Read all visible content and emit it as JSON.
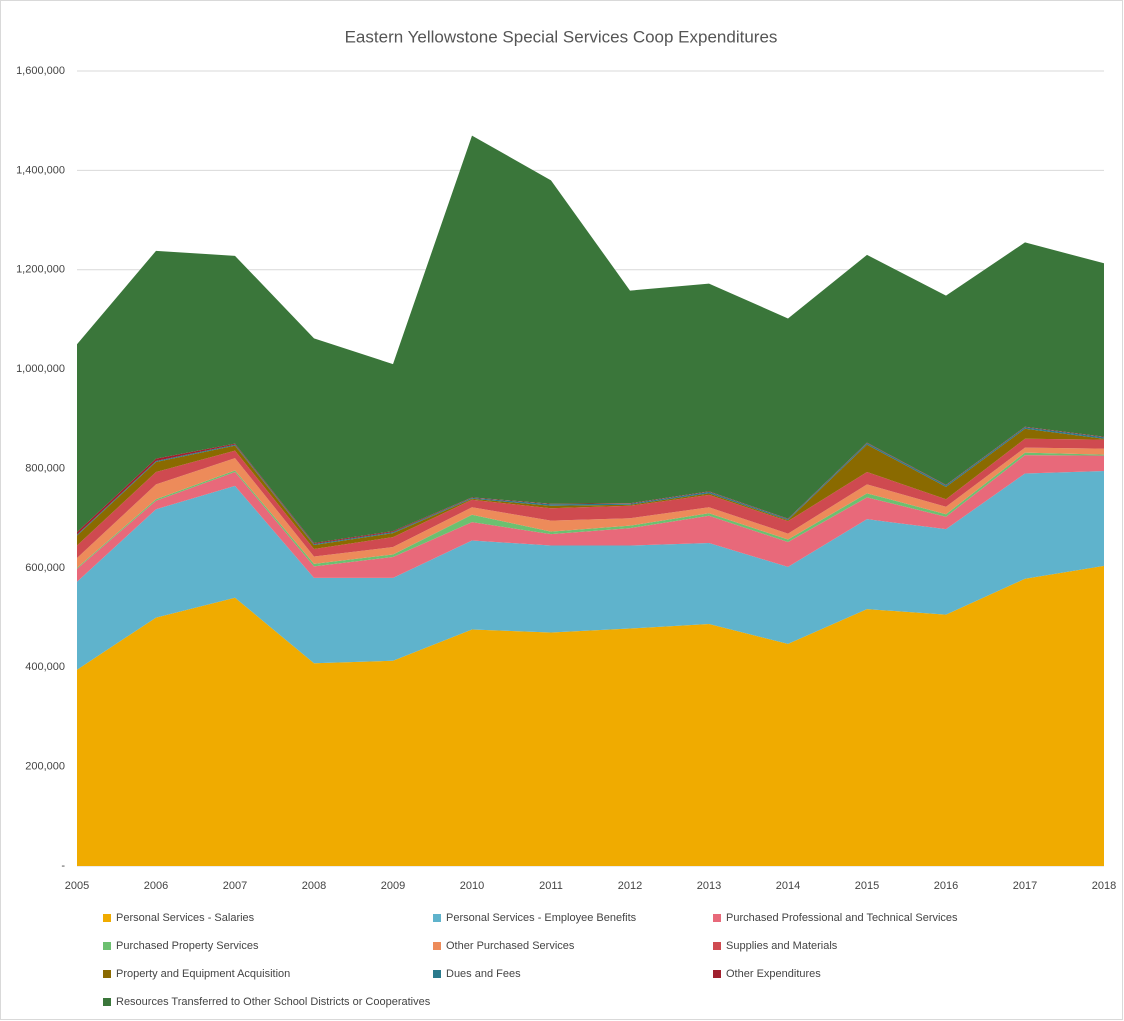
{
  "chart_data": {
    "type": "stacked_area",
    "title": "Eastern Yellowstone Special Services Coop Expenditures",
    "categories": [
      "2005",
      "2006",
      "2007",
      "2008",
      "2009",
      "2010",
      "2011",
      "2012",
      "2013",
      "2014",
      "2015",
      "2016",
      "2017",
      "2018"
    ],
    "ylim": [
      0,
      1600000
    ],
    "yticks": [
      {
        "value": 0,
        "label": "-"
      },
      {
        "value": 200000,
        "label": "200,000"
      },
      {
        "value": 400000,
        "label": "400,000"
      },
      {
        "value": 600000,
        "label": "600,000"
      },
      {
        "value": 800000,
        "label": "800,000"
      },
      {
        "value": 1000000,
        "label": "1,000,000"
      },
      {
        "value": 1200000,
        "label": "1,200,000"
      },
      {
        "value": 1400000,
        "label": "1,400,000"
      },
      {
        "value": 1600000,
        "label": "1,600,000"
      }
    ],
    "grid": true,
    "legend": "bottom",
    "series": [
      {
        "name": "Personal Services - Salaries",
        "color": "#f0ab00",
        "values": [
          395000,
          500000,
          540000,
          408000,
          413000,
          476000,
          470000,
          478000,
          487000,
          447000,
          517000,
          506000,
          578000,
          604000
        ]
      },
      {
        "name": "Personal Services - Employee Benefits",
        "color": "#5fb3cc",
        "values": [
          177000,
          218000,
          225000,
          172000,
          167000,
          179000,
          175000,
          167000,
          163000,
          155000,
          181000,
          172000,
          212000,
          191000
        ]
      },
      {
        "name": "Purchased Professional and Technical Services",
        "color": "#e8697a",
        "values": [
          26000,
          17000,
          28000,
          23000,
          42000,
          37000,
          23000,
          35000,
          55000,
          50000,
          44000,
          25000,
          37000,
          31000
        ]
      },
      {
        "name": "Purchased Property Services",
        "color": "#6cc070",
        "values": [
          2000,
          3000,
          3000,
          5000,
          5000,
          15000,
          5000,
          5000,
          5000,
          5000,
          8000,
          5000,
          5000,
          2000
        ]
      },
      {
        "name": "Other Purchased Services",
        "color": "#ed8b5a",
        "values": [
          20000,
          30000,
          25000,
          15000,
          15000,
          15000,
          22000,
          15000,
          12000,
          12000,
          18000,
          15000,
          10000,
          12000
        ]
      },
      {
        "name": "Supplies and Materials",
        "color": "#cf4a50",
        "values": [
          25000,
          25000,
          15000,
          15000,
          20000,
          15000,
          25000,
          25000,
          25000,
          25000,
          25000,
          15000,
          18000,
          18000
        ]
      },
      {
        "name": "Property and Equipment Acquisition",
        "color": "#8a6a00",
        "values": [
          20000,
          20000,
          10000,
          8000,
          8000,
          2000,
          5000,
          2000,
          3000,
          2000,
          55000,
          25000,
          20000,
          2000
        ]
      },
      {
        "name": "Dues and Fees",
        "color": "#2a7a8c",
        "values": [
          2000,
          2000,
          2000,
          2000,
          2000,
          2000,
          3000,
          2000,
          3000,
          2000,
          3000,
          3000,
          3000,
          3000
        ]
      },
      {
        "name": "Other Expenditures",
        "color": "#a0202e",
        "values": [
          5000,
          5000,
          2000,
          2000,
          2000,
          1000,
          1000,
          1000,
          1000,
          1000,
          1000,
          1000,
          1000,
          1000
        ]
      },
      {
        "name": "Resources Transferred to Other School Districts or Cooperatives",
        "color": "#3a763a",
        "values": [
          378000,
          418000,
          378000,
          412000,
          336000,
          728000,
          651000,
          428000,
          418000,
          403000,
          378000,
          381000,
          371000,
          349000
        ]
      }
    ]
  }
}
